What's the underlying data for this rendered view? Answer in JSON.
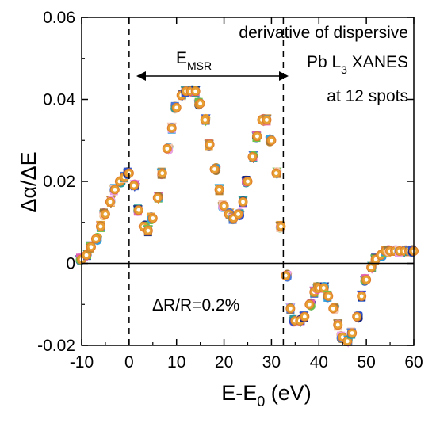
{
  "chart_data": {
    "type": "scatter",
    "xlabel": {
      "main": "E-E",
      "sub": "0",
      "unit": " (eV)"
    },
    "ylabel": "Δα/ΔE",
    "xlim": [
      -10,
      60
    ],
    "ylim": [
      -0.02,
      0.06
    ],
    "xticks": [
      -10,
      0,
      10,
      20,
      30,
      40,
      50,
      60
    ],
    "yticks": [
      -0.02,
      0,
      0.02,
      0.04,
      0.06
    ],
    "ytick_labels": [
      "-0.02",
      "0",
      "0.02",
      "0.04",
      "0.06"
    ],
    "grid": false,
    "zero_line": true,
    "vlines": [
      0,
      32.5
    ],
    "annotations": {
      "title_lines": [
        "derivative of dispersive",
        "Pb L",
        "3",
        " XANES",
        "at 12 spots"
      ],
      "emsr_main": "E",
      "emsr_sub": "MSR",
      "delta_r": "ΔR/R=0.2%"
    },
    "series_colors": [
      "#e8a0e8",
      "#4a78d8",
      "#2a9a9a",
      "#3050c8",
      "#1a2a80",
      "#e060b0",
      "#6dbf4a",
      "#c98a2b",
      "#e7a033",
      "#2f9fe0",
      "#9c7a3c",
      "#f4c6ae"
    ],
    "x": [
      -10,
      -9,
      -8,
      -7,
      -6,
      -5,
      -4,
      -3,
      -2,
      -1,
      0,
      1,
      2,
      3,
      4,
      5,
      6,
      7,
      8,
      9,
      10,
      11,
      12,
      13,
      14,
      15,
      16,
      17,
      18,
      19,
      20,
      21,
      22,
      23,
      24,
      25,
      26,
      27,
      28,
      29,
      30,
      31,
      32,
      33,
      34,
      35,
      36,
      37,
      38,
      39,
      40,
      41,
      42,
      43,
      44,
      45,
      46,
      47,
      48,
      49,
      50,
      51,
      52,
      53,
      54,
      55,
      56,
      57,
      58,
      59,
      60
    ],
    "y": [
      0.001,
      0.002,
      0.004,
      0.006,
      0.009,
      0.012,
      0.015,
      0.018,
      0.02,
      0.021,
      0.022,
      0.019,
      0.013,
      0.009,
      0.008,
      0.011,
      0.016,
      0.022,
      0.028,
      0.033,
      0.038,
      0.041,
      0.042,
      0.042,
      0.042,
      0.039,
      0.035,
      0.029,
      0.023,
      0.018,
      0.014,
      0.012,
      0.011,
      0.012,
      0.015,
      0.02,
      0.026,
      0.031,
      0.035,
      0.035,
      0.03,
      0.022,
      0.009,
      -0.003,
      -0.011,
      -0.014,
      -0.014,
      -0.013,
      -0.01,
      -0.007,
      -0.006,
      -0.006,
      -0.008,
      -0.011,
      -0.015,
      -0.018,
      -0.019,
      -0.017,
      -0.013,
      -0.008,
      -0.004,
      -0.001,
      0.001,
      0.002,
      0.003,
      0.003,
      0.003,
      0.003,
      0.003,
      0.003,
      0.003
    ]
  }
}
